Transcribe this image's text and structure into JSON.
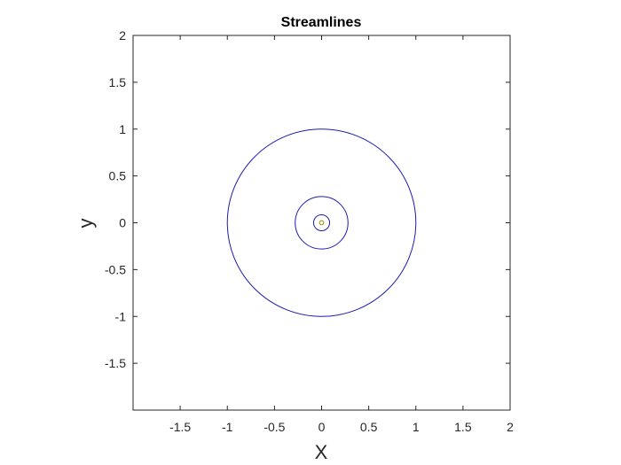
{
  "chart_data": {
    "type": "contour",
    "title": "Streamlines",
    "xlabel": "X",
    "ylabel": "y",
    "xlim": [
      -2,
      2
    ],
    "ylim": [
      -2,
      2
    ],
    "xticks": [
      -1.5,
      -1,
      -0.5,
      0,
      0.5,
      1,
      1.5,
      2
    ],
    "xtick_labels": [
      "-1.5",
      "-1",
      "-0.5",
      "0",
      "0.5",
      "1",
      "1.5",
      "2"
    ],
    "yticks": [
      -1.5,
      -1,
      -0.5,
      0,
      0.5,
      1,
      1.5,
      2
    ],
    "ytick_labels": [
      "-1.5",
      "-1",
      "-0.5",
      "0",
      "0.5",
      "1",
      "1.5",
      "2"
    ],
    "grid": false,
    "legend": "none",
    "contours": [
      {
        "cx": 0,
        "cy": 0,
        "r": 1.0,
        "color": "#1c1cb0"
      },
      {
        "cx": 0,
        "cy": 0,
        "r": 0.28,
        "color": "#1c1cb0"
      },
      {
        "cx": 0,
        "cy": 0,
        "r": 0.085,
        "color": "#1c1cb0"
      },
      {
        "cx": 0,
        "cy": 0,
        "r": 0.022,
        "color": "#8c8c00"
      }
    ]
  }
}
